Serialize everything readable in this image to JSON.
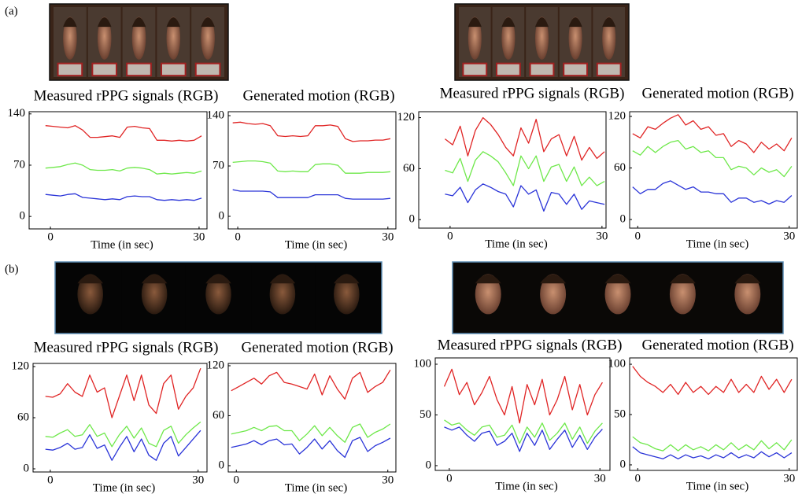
{
  "panel_labels": [
    "(a)",
    "(b)"
  ],
  "chart_data": [
    {
      "type": "line",
      "title": "Measured rPPG signals (RGB)",
      "xlabel": "Time (in sec)",
      "x": [
        -1,
        0.5,
        2,
        3.5,
        5,
        6.5,
        8,
        9.5,
        11,
        12.5,
        14,
        15.5,
        17,
        18.5,
        20,
        21.5,
        23,
        24.5,
        26,
        27.5,
        29,
        30.5
      ],
      "xlim": [
        -4.3,
        31.6
      ],
      "xticks": [
        0,
        30
      ],
      "ylim": [
        -17,
        143
      ],
      "yticks": [
        0,
        70,
        140
      ],
      "series": [
        {
          "color": "#e02424",
          "values": [
            124,
            123,
            122,
            121,
            124,
            118,
            108,
            108,
            109,
            110,
            108,
            122,
            123,
            121,
            120,
            104,
            104,
            103,
            104,
            103,
            104,
            110
          ]
        },
        {
          "color": "#6ee84a",
          "values": [
            66,
            67,
            68,
            71,
            73,
            70,
            64,
            63,
            63,
            64,
            62,
            66,
            67,
            66,
            64,
            58,
            59,
            58,
            59,
            60,
            59,
            62
          ]
        },
        {
          "color": "#2a34d8",
          "values": [
            30,
            29,
            28,
            30,
            31,
            26,
            25,
            24,
            23,
            24,
            23,
            27,
            28,
            27,
            27,
            23,
            22,
            23,
            22,
            23,
            22,
            25
          ]
        }
      ]
    },
    {
      "type": "line",
      "title": "Generated motion (RGB)",
      "xlabel": "Time (in sec)",
      "x": [
        -1,
        0.5,
        2,
        3.5,
        5,
        6.5,
        8,
        9.5,
        11,
        12.5,
        14,
        15.5,
        17,
        18.5,
        20,
        21.5,
        23,
        24.5,
        26,
        27.5,
        29,
        30.5
      ],
      "xlim": [
        -1.9,
        31.6
      ],
      "xticks": [
        0,
        30
      ],
      "ylim": [
        -17.5,
        145.5
      ],
      "yticks": [
        0,
        70,
        140
      ],
      "series": [
        {
          "color": "#e02424",
          "values": [
            130,
            131,
            129,
            128,
            129,
            126,
            112,
            111,
            112,
            111,
            112,
            126,
            126,
            127,
            125,
            108,
            104,
            105,
            105,
            106,
            106,
            108
          ]
        },
        {
          "color": "#6ee84a",
          "values": [
            75,
            76,
            77,
            77,
            76,
            74,
            63,
            62,
            63,
            62,
            62,
            72,
            73,
            73,
            71,
            60,
            60,
            60,
            61,
            61,
            61,
            62
          ]
        },
        {
          "color": "#2a34d8",
          "values": [
            37,
            35,
            35,
            35,
            35,
            34,
            26,
            26,
            26,
            26,
            26,
            30,
            30,
            30,
            30,
            25,
            24,
            24,
            24,
            24,
            24,
            25
          ]
        }
      ]
    },
    {
      "type": "line",
      "title": "Measured rPPG signals (RGB)",
      "xlabel": "Time (in sec)",
      "x": [
        -1,
        0.5,
        2,
        3.5,
        5,
        6.5,
        8,
        9.5,
        11,
        12.5,
        14,
        15.5,
        17,
        18.5,
        20,
        21.5,
        23,
        24.5,
        26,
        27.5,
        29,
        30.5
      ],
      "xlim": [
        -6.2,
        30.8
      ],
      "xticks": [
        0,
        30
      ],
      "ylim": [
        -10,
        127
      ],
      "yticks": [
        0,
        60,
        120
      ],
      "series": [
        {
          "color": "#e02424",
          "values": [
            95,
            88,
            110,
            75,
            105,
            120,
            112,
            100,
            85,
            75,
            108,
            90,
            118,
            80,
            95,
            100,
            75,
            98,
            70,
            85,
            72,
            80
          ]
        },
        {
          "color": "#6ee84a",
          "values": [
            58,
            55,
            72,
            45,
            70,
            80,
            75,
            68,
            55,
            40,
            75,
            60,
            75,
            45,
            62,
            65,
            45,
            62,
            40,
            50,
            40,
            45
          ]
        },
        {
          "color": "#2a34d8",
          "values": [
            30,
            28,
            38,
            20,
            35,
            42,
            38,
            33,
            30,
            15,
            40,
            30,
            35,
            10,
            32,
            30,
            18,
            30,
            12,
            22,
            20,
            18
          ]
        }
      ]
    },
    {
      "type": "line",
      "title": "Generated motion (RGB)",
      "xlabel": "Time (in sec)",
      "x": [
        -1,
        0.5,
        2,
        3.5,
        5,
        6.5,
        8,
        9.5,
        11,
        12.5,
        14,
        15.5,
        17,
        18.5,
        20,
        21.5,
        23,
        24.5,
        26,
        27.5,
        29,
        30.5
      ],
      "xlim": [
        -1.6,
        31.6
      ],
      "xticks": [
        0,
        30
      ],
      "ylim": [
        -10,
        125.5
      ],
      "yticks": [
        0,
        60,
        120
      ],
      "series": [
        {
          "color": "#e02424",
          "values": [
            100,
            95,
            108,
            105,
            112,
            118,
            122,
            110,
            115,
            105,
            108,
            98,
            100,
            85,
            92,
            88,
            78,
            90,
            82,
            88,
            80,
            95
          ]
        },
        {
          "color": "#6ee84a",
          "values": [
            80,
            75,
            85,
            78,
            85,
            90,
            92,
            82,
            85,
            78,
            80,
            72,
            72,
            58,
            62,
            60,
            52,
            60,
            55,
            58,
            50,
            62
          ]
        },
        {
          "color": "#2a34d8",
          "values": [
            38,
            30,
            35,
            35,
            42,
            45,
            40,
            35,
            38,
            32,
            32,
            30,
            30,
            20,
            25,
            25,
            20,
            22,
            18,
            22,
            20,
            28
          ]
        }
      ]
    },
    {
      "type": "line",
      "title": "Measured rPPG signals (RGB)",
      "xlabel": "Time (in sec)",
      "x": [
        -1,
        0.5,
        2,
        3.5,
        5,
        6.5,
        8,
        9.5,
        11,
        12.5,
        14,
        15.5,
        17,
        18.5,
        20,
        21.5,
        23,
        24.5,
        26,
        27.5,
        29,
        30.5
      ],
      "xlim": [
        -3.5,
        31.8
      ],
      "xticks": [
        0,
        30
      ],
      "ylim": [
        -3.7,
        123.7
      ],
      "yticks": [
        0,
        60,
        120
      ],
      "series": [
        {
          "color": "#e02424",
          "values": [
            85,
            84,
            88,
            100,
            90,
            85,
            110,
            90,
            95,
            60,
            85,
            110,
            80,
            110,
            75,
            65,
            100,
            110,
            70,
            85,
            95,
            118
          ]
        },
        {
          "color": "#6ee84a",
          "values": [
            38,
            37,
            42,
            46,
            38,
            40,
            52,
            38,
            42,
            26,
            40,
            50,
            36,
            48,
            30,
            26,
            45,
            50,
            30,
            40,
            48,
            55
          ]
        },
        {
          "color": "#2a34d8",
          "values": [
            23,
            22,
            25,
            30,
            23,
            25,
            40,
            24,
            28,
            10,
            25,
            38,
            20,
            35,
            16,
            10,
            30,
            38,
            15,
            25,
            35,
            45
          ]
        }
      ]
    },
    {
      "type": "line",
      "title": "Generated motion (RGB)",
      "xlabel": "Time (in sec)",
      "x": [
        -1,
        0.5,
        2,
        3.5,
        5,
        6.5,
        8,
        9.5,
        11,
        12.5,
        14,
        15.5,
        17,
        18.5,
        20,
        21.5,
        23,
        24.5,
        26,
        27.5,
        29,
        30.5
      ],
      "xlim": [
        -1.6,
        31.6
      ],
      "xticks": [
        0,
        30
      ],
      "ylim": [
        -7.6,
        122.8
      ],
      "yticks": [
        0,
        60,
        120
      ],
      "series": [
        {
          "color": "#e02424",
          "values": [
            90,
            95,
            100,
            105,
            98,
            108,
            112,
            100,
            98,
            95,
            92,
            110,
            85,
            108,
            92,
            80,
            105,
            112,
            88,
            95,
            100,
            115
          ]
        },
        {
          "color": "#6ee84a",
          "values": [
            38,
            40,
            42,
            46,
            42,
            47,
            48,
            42,
            42,
            30,
            38,
            48,
            36,
            46,
            36,
            28,
            46,
            50,
            34,
            40,
            44,
            50
          ]
        },
        {
          "color": "#2a34d8",
          "values": [
            22,
            24,
            26,
            30,
            25,
            30,
            32,
            25,
            26,
            14,
            22,
            32,
            20,
            30,
            18,
            10,
            30,
            34,
            17,
            24,
            28,
            33
          ]
        }
      ]
    },
    {
      "type": "line",
      "title": "Measured rPPG signals (RGB)",
      "xlabel": "Time (in sec)",
      "x": [
        -1,
        0.5,
        2,
        3.5,
        5,
        6.5,
        8,
        9.5,
        11,
        12.5,
        14,
        15.5,
        17,
        18.5,
        20,
        21.5,
        23,
        24.5,
        26,
        27.5,
        29,
        30.5
      ],
      "xlim": [
        -2.8,
        32.0
      ],
      "xticks": [
        0,
        30
      ],
      "ylim": [
        -4.7,
        106.2
      ],
      "yticks": [
        0,
        50,
        100
      ],
      "series": [
        {
          "color": "#e02424",
          "values": [
            78,
            95,
            70,
            82,
            60,
            72,
            88,
            65,
            50,
            78,
            42,
            80,
            60,
            85,
            50,
            65,
            88,
            55,
            80,
            50,
            70,
            82
          ]
        },
        {
          "color": "#6ee84a",
          "values": [
            45,
            40,
            42,
            35,
            30,
            38,
            40,
            28,
            30,
            40,
            22,
            38,
            28,
            42,
            25,
            32,
            42,
            26,
            38,
            22,
            34,
            42
          ]
        },
        {
          "color": "#2a34d8",
          "values": [
            38,
            35,
            38,
            30,
            24,
            32,
            34,
            20,
            24,
            32,
            14,
            32,
            20,
            35,
            16,
            26,
            35,
            18,
            30,
            16,
            28,
            36
          ]
        }
      ]
    },
    {
      "type": "line",
      "title": "Generated motion (RGB)",
      "xlabel": "Time (in sec)",
      "x": [
        -1,
        0.5,
        2,
        3.5,
        5,
        6.5,
        8,
        9.5,
        11,
        12.5,
        14,
        15.5,
        17,
        18.5,
        20,
        21.5,
        23,
        24.5,
        26,
        27.5,
        29,
        30.5
      ],
      "xlim": [
        -1.6,
        31.6
      ],
      "xticks": [
        0,
        30
      ],
      "ylim": [
        -5.5,
        106.3
      ],
      "yticks": [
        0,
        50,
        100
      ],
      "series": [
        {
          "color": "#e02424",
          "values": [
            98,
            88,
            82,
            78,
            72,
            80,
            70,
            82,
            72,
            78,
            70,
            78,
            72,
            85,
            72,
            80,
            72,
            88,
            75,
            85,
            72,
            85
          ]
        },
        {
          "color": "#6ee84a",
          "values": [
            28,
            22,
            20,
            16,
            14,
            20,
            14,
            20,
            15,
            18,
            14,
            20,
            15,
            22,
            15,
            20,
            15,
            24,
            16,
            22,
            15,
            25
          ]
        },
        {
          "color": "#2a34d8",
          "values": [
            18,
            12,
            10,
            8,
            6,
            10,
            6,
            10,
            7,
            9,
            6,
            10,
            7,
            12,
            7,
            10,
            7,
            13,
            8,
            12,
            7,
            12
          ]
        }
      ]
    }
  ]
}
